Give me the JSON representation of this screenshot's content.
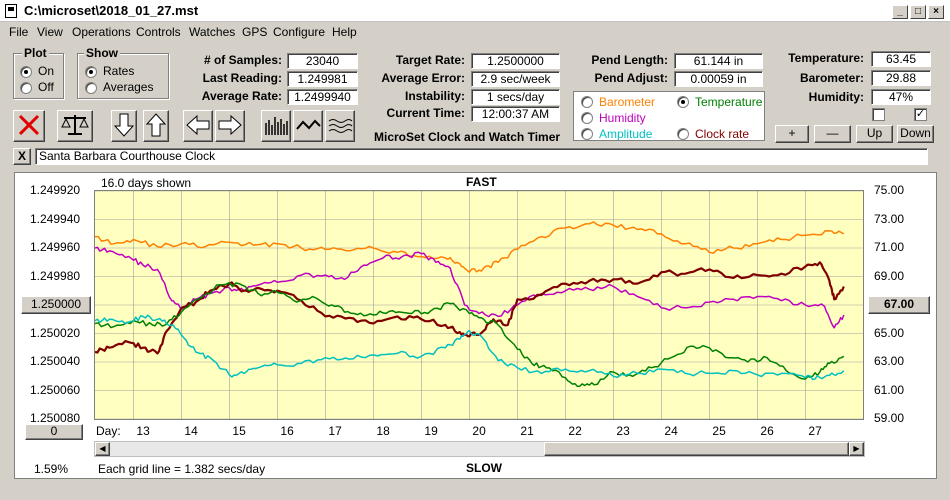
{
  "window": {
    "title": "C:\\microset\\2018_01_27.mst"
  },
  "menu": [
    "File",
    "View",
    "Operations",
    "Controls",
    "Watches",
    "GPS",
    "Configure",
    "Help"
  ],
  "plot_group": {
    "title": "Plot",
    "on": "On",
    "off": "Off"
  },
  "show_group": {
    "title": "Show",
    "rates": "Rates",
    "averages": "Averages"
  },
  "stats": {
    "samples_label": "# of Samples:",
    "samples": "23040",
    "last_label": "Last Reading:",
    "last": "1.249981",
    "avg_label": "Average Rate:",
    "avg": "1.2499940"
  },
  "rates": {
    "target_label": "Target Rate:",
    "target": "1.2500000",
    "error_label": "Average Error:",
    "error": "2.9 sec/week",
    "instab_label": "Instability:",
    "instab": "1 secs/day",
    "time_label": "Current Time:",
    "time": "12:00:37 AM",
    "app_name": "MicroSet Clock and Watch Timer"
  },
  "pend": {
    "length_label": "Pend Length:",
    "length": "61.144 in",
    "adjust_label": "Pend Adjust:",
    "adjust": "0.00059 in"
  },
  "env": {
    "temp_label": "Temperature:",
    "temp": "63.45",
    "baro_label": "Barometer:",
    "baro": "29.88",
    "hum_label": "Humidity:",
    "hum": "47%"
  },
  "sensor_options": {
    "barometer": "Barometer",
    "temperature": "Temperature",
    "humidity": "Humidity",
    "amplitude": "Amplitude",
    "clock_rate": "Clock rate",
    "colors": {
      "barometer": "#ff8000",
      "temperature": "#008000",
      "humidity": "#c000c0",
      "amplitude": "#00c0c0",
      "clock_rate": "#800000"
    }
  },
  "adjust_buttons": {
    "plus": "+",
    "minus": "—",
    "up": "Up",
    "down": "Down"
  },
  "clock_name": "Santa Barbara Courthouse Clock",
  "close_x": "X",
  "chart_data": {
    "type": "line",
    "days_shown": "16.0 days shown",
    "top_label": "FAST",
    "bottom_label": "SLOW",
    "grid_note": "Each grid line = 1.382 secs/day",
    "percent": "1.59%",
    "left_center_button": "1.250000",
    "right_center_button": "67.00",
    "zero_button": "0",
    "x_label": "Day:",
    "x_ticks": [
      "13",
      "14",
      "15",
      "16",
      "17",
      "18",
      "19",
      "20",
      "21",
      "22",
      "23",
      "24",
      "25",
      "26",
      "27"
    ],
    "x_range": [
      12.2,
      28.2
    ],
    "y_left_ticks": [
      "1.249920",
      "1.249940",
      "1.249960",
      "1.249980",
      "1.250000",
      "1.250020",
      "1.250040",
      "1.250060",
      "1.250080"
    ],
    "y_left_range": [
      1.24992,
      1.25008
    ],
    "y_right_ticks": [
      "75.00",
      "73.00",
      "71.00",
      "69.00",
      "67.00",
      "65.00",
      "63.00",
      "61.00",
      "59.00"
    ],
    "y_right_range": [
      75.0,
      59.0
    ],
    "grid": true,
    "series": [
      {
        "name": "Barometer",
        "color": "#ff8000",
        "axis": "right",
        "x": [
          12.2,
          12.6,
          13.0,
          13.5,
          14.0,
          14.5,
          15.0,
          15.5,
          16.0,
          16.5,
          17.0,
          17.5,
          18.0,
          18.5,
          19.0,
          19.5,
          19.8,
          20.0,
          20.3,
          20.6,
          21.0,
          21.5,
          22.0,
          22.5,
          23.0,
          23.5,
          24.0,
          24.5,
          25.0,
          25.5,
          26.0,
          26.5,
          27.0,
          27.5,
          27.8
        ],
        "y": [
          71.8,
          71.3,
          71.6,
          71.1,
          71.3,
          71.1,
          71.4,
          71.2,
          71.3,
          71.0,
          70.9,
          70.8,
          71.0,
          70.7,
          70.4,
          70.3,
          69.9,
          69.3,
          69.6,
          70.0,
          70.9,
          71.8,
          72.4,
          72.7,
          72.6,
          72.3,
          72.0,
          71.3,
          70.7,
          71.0,
          71.3,
          71.6,
          71.9,
          72.2,
          72.0
        ]
      },
      {
        "name": "Humidity",
        "color": "#c000c0",
        "axis": "right",
        "x": [
          12.2,
          12.5,
          12.9,
          13.2,
          13.5,
          13.8,
          14.0,
          14.3,
          14.6,
          15.0,
          15.3,
          15.6,
          16.0,
          16.5,
          17.0,
          17.4,
          17.8,
          18.2,
          18.6,
          19.0,
          19.3,
          19.6,
          19.9,
          20.2,
          20.6,
          21.0,
          21.5,
          22.0,
          22.5,
          23.0,
          23.5,
          24.0,
          24.5,
          25.0,
          25.5,
          26.0,
          26.5,
          27.0,
          27.4,
          27.6,
          27.8
        ],
        "y": [
          71.0,
          70.8,
          70.4,
          69.8,
          69.5,
          67.3,
          66.7,
          67.4,
          67.8,
          68.2,
          68.0,
          68.4,
          68.6,
          69.1,
          69.1,
          68.8,
          69.8,
          70.3,
          70.4,
          70.6,
          70.0,
          69.6,
          67.0,
          66.4,
          66.2,
          67.0,
          67.8,
          68.0,
          68.1,
          68.3,
          67.6,
          66.8,
          66.8,
          67.2,
          67.4,
          67.6,
          67.3,
          67.0,
          66.9,
          65.4,
          66.3
        ]
      },
      {
        "name": "Clock rate",
        "color": "#800000",
        "axis": "left",
        "x": [
          12.2,
          12.5,
          12.9,
          13.2,
          13.5,
          13.7,
          14.0,
          14.3,
          14.6,
          15.0,
          15.3,
          15.6,
          16.0,
          16.5,
          17.0,
          17.5,
          18.0,
          18.5,
          19.0,
          19.5,
          19.8,
          20.0,
          20.3,
          20.5,
          20.8,
          21.0,
          21.5,
          22.0,
          22.5,
          23.0,
          23.5,
          24.0,
          24.5,
          25.0,
          25.5,
          26.0,
          26.5,
          27.0,
          27.3,
          27.5,
          27.6,
          27.8
        ],
        "y": [
          1.250033,
          1.25003,
          1.250026,
          1.25003,
          1.250034,
          1.250018,
          1.250002,
          1.249998,
          1.24999,
          1.249985,
          1.24999,
          1.249988,
          1.24999,
          1.249997,
          1.250008,
          1.250009,
          1.250013,
          1.250008,
          1.25001,
          1.250014,
          1.250019,
          1.250022,
          1.250018,
          1.25001,
          1.250014,
          1.249996,
          1.249993,
          1.249985,
          1.249983,
          1.249982,
          1.249985,
          1.249977,
          1.249978,
          1.249975,
          1.249981,
          1.249979,
          1.249978,
          1.249973,
          1.24997,
          1.249983,
          1.249996,
          1.249987
        ]
      },
      {
        "name": "Temperature",
        "color": "#008000",
        "axis": "right",
        "x": [
          12.2,
          12.6,
          13.0,
          13.4,
          13.7,
          14.0,
          14.4,
          14.8,
          15.2,
          15.6,
          16.0,
          16.4,
          16.8,
          17.2,
          17.6,
          18.0,
          18.4,
          18.8,
          19.2,
          19.6,
          20.0,
          20.3,
          20.6,
          21.0,
          21.3,
          21.6,
          22.0,
          22.3,
          22.6,
          23.0,
          23.4,
          23.8,
          24.2,
          24.6,
          25.0,
          25.4,
          25.8,
          26.2,
          26.6,
          27.0,
          27.3,
          27.5,
          27.8
        ],
        "y": [
          65.7,
          65.5,
          65.9,
          65.6,
          65.7,
          66.5,
          67.5,
          68.4,
          68.5,
          67.8,
          67.9,
          67.2,
          67.5,
          66.9,
          66.4,
          66.3,
          66.6,
          66.4,
          66.6,
          67.1,
          66.4,
          66.0,
          65.6,
          63.9,
          62.9,
          62.6,
          61.9,
          61.3,
          61.4,
          62.3,
          62.0,
          62.6,
          63.3,
          64.1,
          64.0,
          63.3,
          63.0,
          63.3,
          62.4,
          61.8,
          62.3,
          62.9,
          63.4
        ]
      },
      {
        "name": "Amplitude",
        "color": "#00c0c0",
        "axis": "right",
        "x": [
          12.2,
          12.5,
          12.9,
          13.2,
          13.5,
          13.8,
          14.0,
          14.3,
          14.6,
          15.0,
          15.3,
          15.6,
          16.0,
          16.5,
          17.0,
          17.5,
          18.0,
          18.5,
          19.0,
          19.5,
          19.8,
          20.0,
          20.3,
          20.6,
          21.0,
          21.5,
          22.0,
          22.5,
          23.0,
          23.5,
          24.0,
          24.5,
          25.0,
          25.5,
          26.0,
          26.5,
          27.0,
          27.3,
          27.6,
          27.8
        ],
        "y": [
          65.9,
          66.0,
          65.8,
          66.2,
          66.0,
          65.6,
          64.9,
          63.7,
          63.3,
          62.1,
          62.2,
          62.6,
          62.8,
          62.9,
          63.3,
          63.2,
          63.5,
          63.6,
          63.4,
          64.0,
          64.6,
          65.2,
          64.6,
          63.1,
          62.6,
          62.2,
          62.5,
          62.4,
          62.0,
          62.2,
          62.5,
          62.2,
          62.2,
          62.4,
          62.1,
          62.2,
          61.9,
          61.9,
          62.1,
          62.4
        ]
      }
    ]
  }
}
